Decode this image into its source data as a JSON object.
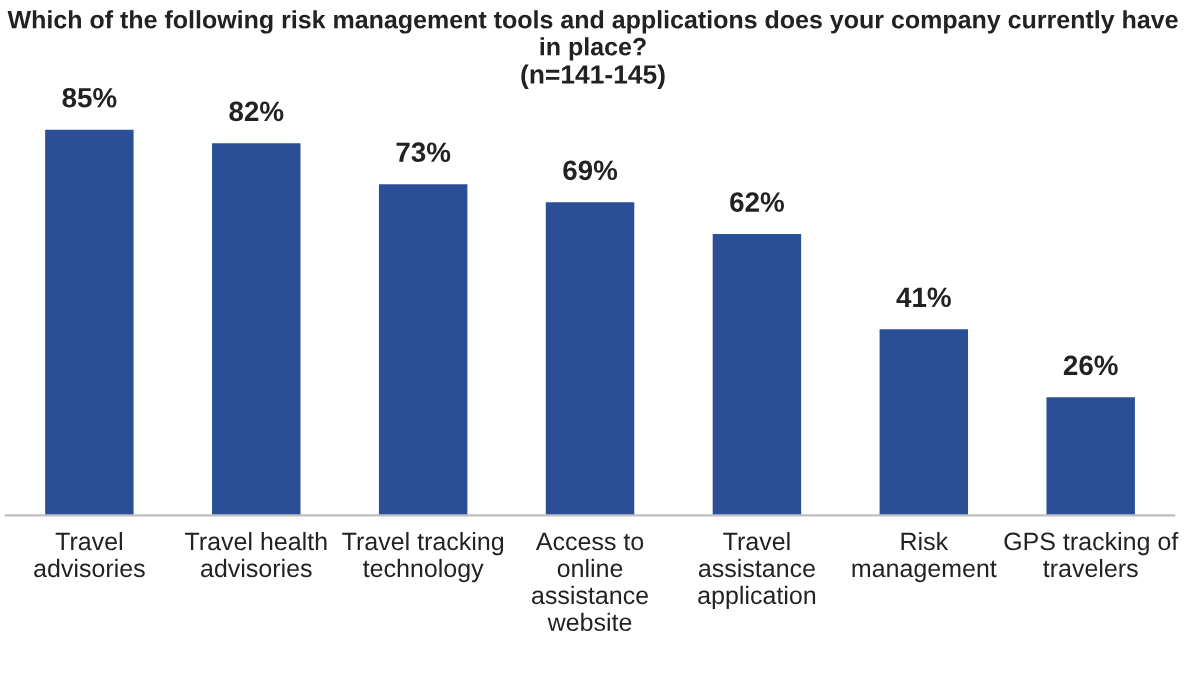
{
  "chart_data": {
    "type": "bar",
    "title": "Which of the following risk management tools and applications does your company currently have in place?",
    "subtitle": "(n=141-145)",
    "categories": [
      "Travel\nadvisories",
      "Travel health\nadvisories",
      "Travel tracking\ntechnology",
      "Access to\nonline\nassistance\nwebsite",
      "Travel\nassistance\napplication",
      "Risk\nmanagement",
      "GPS tracking of\ntravelers"
    ],
    "values": [
      85,
      82,
      73,
      69,
      62,
      41,
      26
    ],
    "value_labels": [
      "85%",
      "82%",
      "73%",
      "69%",
      "62%",
      "41%",
      "26%"
    ],
    "color": "#2a4f96",
    "grid": false,
    "legend": false
  }
}
